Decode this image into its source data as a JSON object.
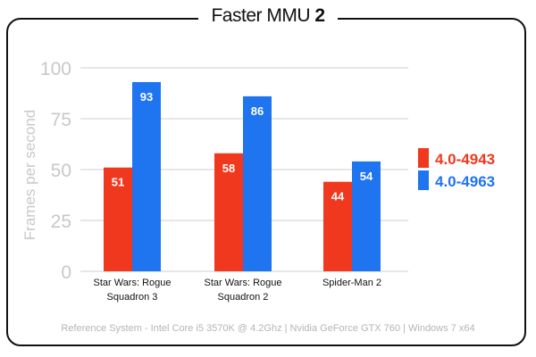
{
  "title": {
    "main": "Faster MMU",
    "number": "2"
  },
  "footer": "Reference System  -  Intel Core i5 3570K @ 4.2Ghz | Nvidia GeForce GTX 760 | Windows 7 x64",
  "colors": {
    "series1": "#f0381e",
    "series2": "#1f74f0",
    "grid": "#cfcfcf",
    "axis_text": "#c8c8c8",
    "cat_text": "#111111"
  },
  "chart_data": {
    "type": "bar",
    "title": "Faster MMU 2",
    "ylabel": "Frames per second",
    "xlabel": "",
    "ylim": [
      0,
      100
    ],
    "yticks": [
      "0",
      "25",
      "50",
      "75",
      "100"
    ],
    "grid": true,
    "legend": "right",
    "categories": [
      "Star Wars: Rogue Squadron 3",
      "Star Wars: Rogue Squadron 2",
      "Spider-Man 2"
    ],
    "category_lines": [
      [
        "Star Wars: Rogue",
        "Squadron 3"
      ],
      [
        "Star Wars: Rogue",
        "Squadron 2"
      ],
      [
        "Spider-Man 2"
      ]
    ],
    "series": [
      {
        "name": "4.0-4943",
        "values": [
          51,
          58,
          44
        ],
        "labels": [
          "51",
          "58",
          "44"
        ]
      },
      {
        "name": "4.0-4963",
        "values": [
          93,
          86,
          54
        ],
        "labels": [
          "93",
          "86",
          "54"
        ]
      }
    ]
  }
}
